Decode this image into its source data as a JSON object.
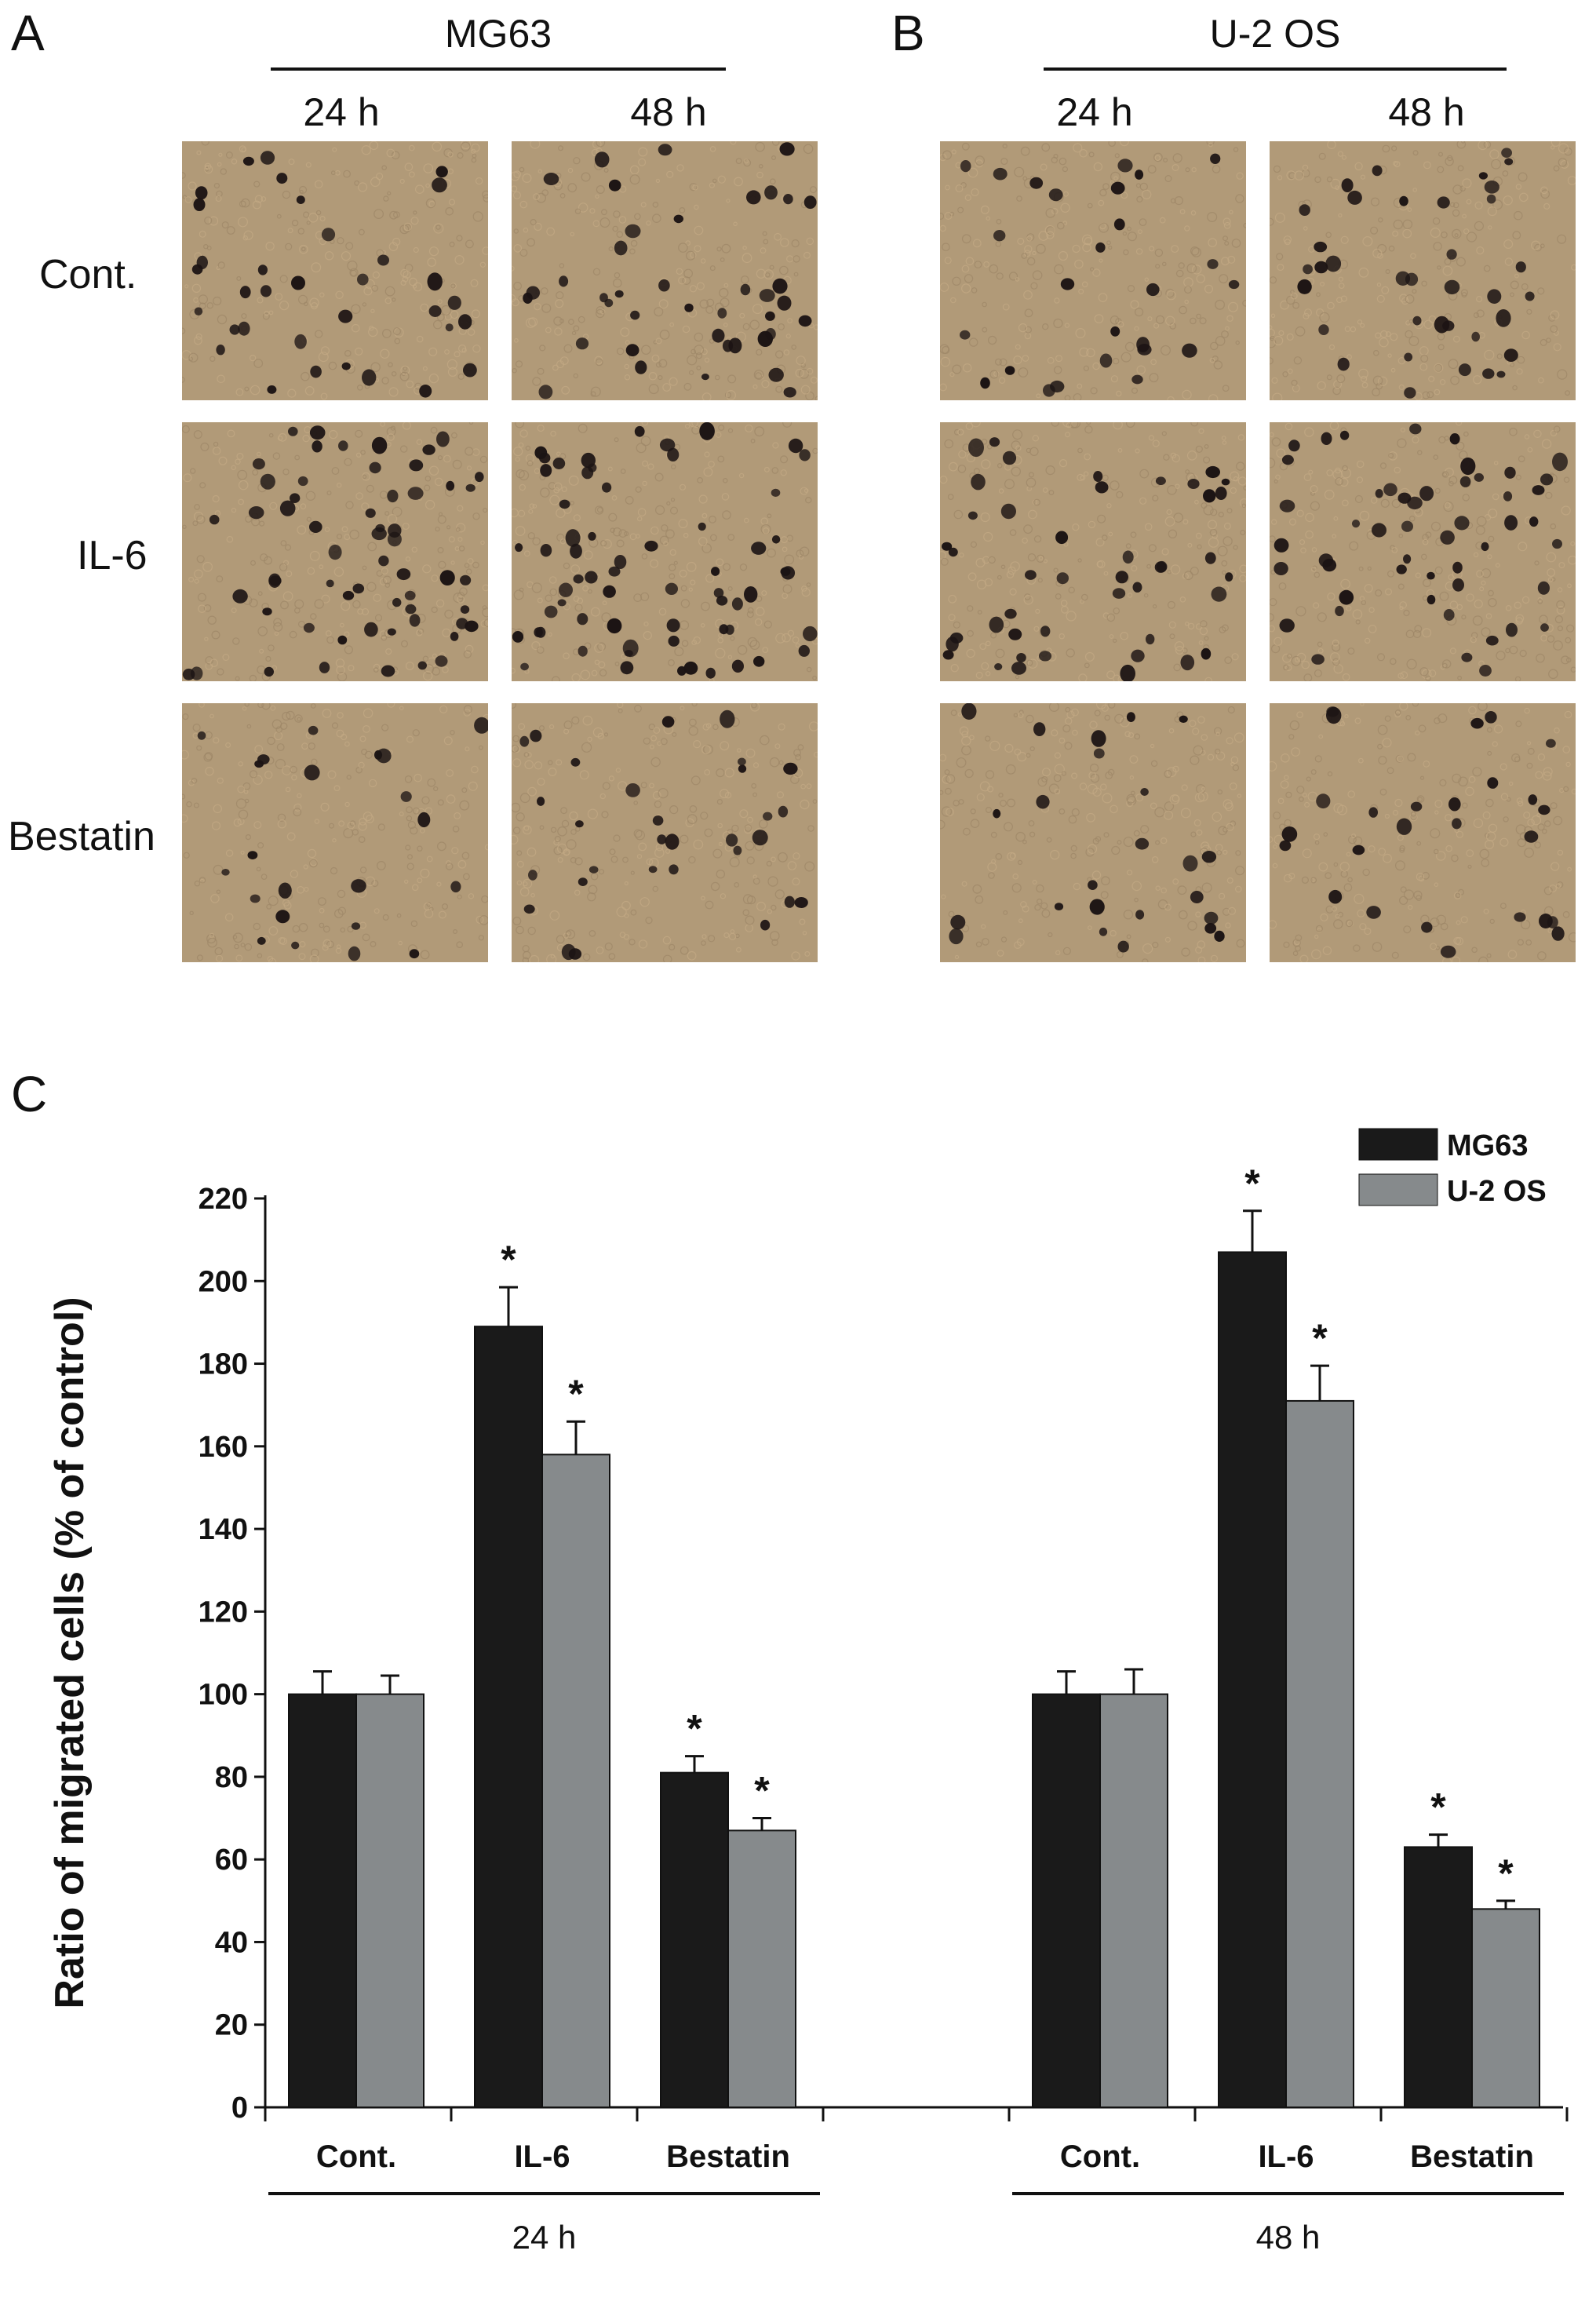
{
  "panels": {
    "A": {
      "letter": "A",
      "cell_line": "MG63",
      "times": [
        "24 h",
        "48 h"
      ]
    },
    "B": {
      "letter": "B",
      "cell_line": "U-2 OS",
      "times": [
        "24 h",
        "48 h"
      ]
    },
    "C": {
      "letter": "C"
    }
  },
  "row_labels": [
    "Cont.",
    "IL-6",
    "Bestatin"
  ],
  "colors": {
    "micrograph_bg": "#b19a78",
    "micrograph_tint": "#c3a985",
    "cell_dark": "#1c1414",
    "mg63_bar": "#1a1a1a",
    "u2os_bar": "#868a8c"
  },
  "chart_data": {
    "type": "bar",
    "ylabel": "Ratio of migrated cells (% of control)",
    "ylim": [
      0,
      220
    ],
    "yticks": [
      0,
      20,
      40,
      60,
      80,
      100,
      120,
      140,
      160,
      180,
      200,
      220
    ],
    "groups": [
      {
        "label": "24 h",
        "categories": [
          "Cont.",
          "IL-6",
          "Bestatin"
        ],
        "series": [
          {
            "name": "MG63",
            "values": [
              100,
              189,
              81
            ],
            "errors": [
              5.5,
              9.5,
              4
            ],
            "significant": [
              false,
              true,
              true
            ]
          },
          {
            "name": "U-2 OS",
            "values": [
              100,
              158,
              67
            ],
            "errors": [
              4.5,
              8,
              3
            ],
            "significant": [
              false,
              true,
              true
            ]
          }
        ]
      },
      {
        "label": "48 h",
        "categories": [
          "Cont.",
          "IL-6",
          "Bestatin"
        ],
        "series": [
          {
            "name": "MG63",
            "values": [
              100,
              207,
              63
            ],
            "errors": [
              5.5,
              10,
              3
            ],
            "significant": [
              false,
              true,
              true
            ]
          },
          {
            "name": "U-2 OS",
            "values": [
              100,
              171,
              48
            ],
            "errors": [
              6,
              8.5,
              2
            ],
            "significant": [
              false,
              true,
              true
            ]
          }
        ]
      }
    ],
    "significance_marker": "*",
    "legend": {
      "position": "top-right",
      "entries": [
        "MG63",
        "U-2 OS"
      ]
    },
    "grid": false
  }
}
